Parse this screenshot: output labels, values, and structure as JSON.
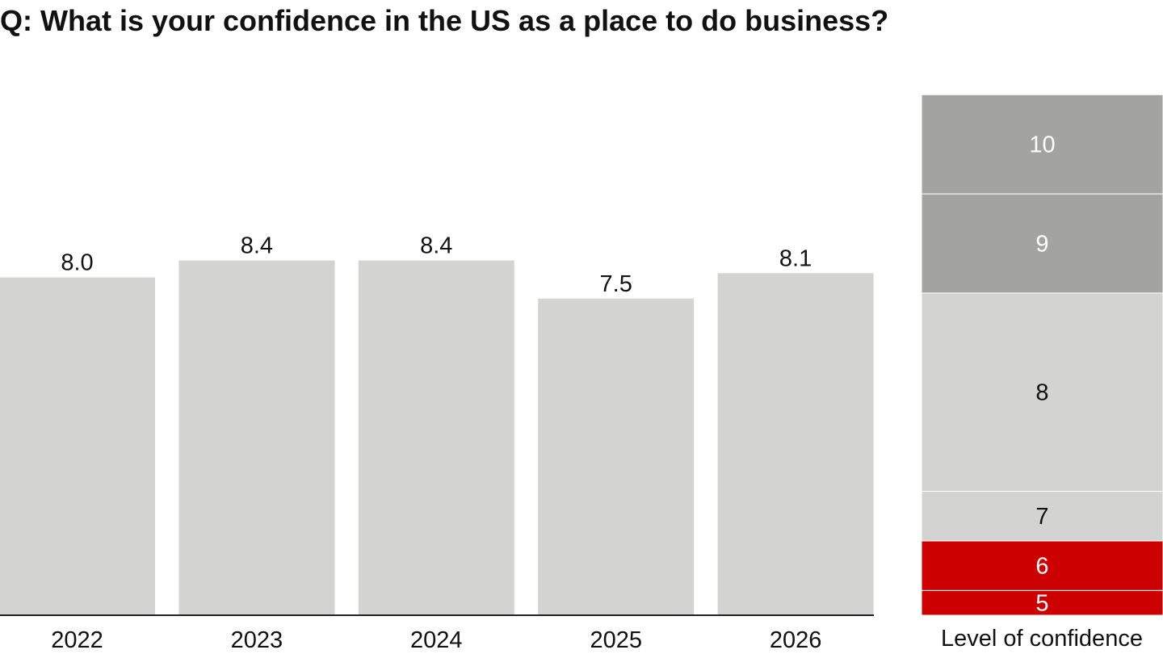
{
  "chart_data": [
    {
      "type": "bar",
      "title": "Q: What is your confidence in the US as a place to do business?",
      "categories": [
        "2022",
        "2023",
        "2024",
        "2025",
        "2026"
      ],
      "values": [
        8.0,
        8.4,
        8.4,
        7.5,
        8.1
      ],
      "value_labels": [
        "8.0",
        "8.4",
        "8.4",
        "7.5",
        "8.1"
      ],
      "xlabel": "",
      "ylabel": "",
      "ylim": [
        0,
        10
      ],
      "grid": false,
      "bar_color": "#d3d3d1"
    },
    {
      "type": "bar",
      "stacked": true,
      "caption": "Level of confidence",
      "ylim": [
        0,
        10
      ],
      "segments": [
        {
          "label": "5",
          "from": 0,
          "to": 0.5,
          "color": "#cc0000",
          "text_color": "#ffffff"
        },
        {
          "label": "6",
          "from": 0.5,
          "to": 1.5,
          "color": "#cc0000",
          "text_color": "#ffffff"
        },
        {
          "label": "7",
          "from": 1.5,
          "to": 2.5,
          "color": "#d3d3d1",
          "text_color": "#111111"
        },
        {
          "label": "8",
          "from": 2.5,
          "to": 6.5,
          "color": "#d3d3d1",
          "text_color": "#111111"
        },
        {
          "label": "9",
          "from": 6.5,
          "to": 8.5,
          "color": "#a3a3a1",
          "text_color": "#ffffff"
        },
        {
          "label": "10",
          "from": 8.5,
          "to": 10.5,
          "color": "#a3a3a1",
          "text_color": "#ffffff"
        }
      ]
    }
  ]
}
